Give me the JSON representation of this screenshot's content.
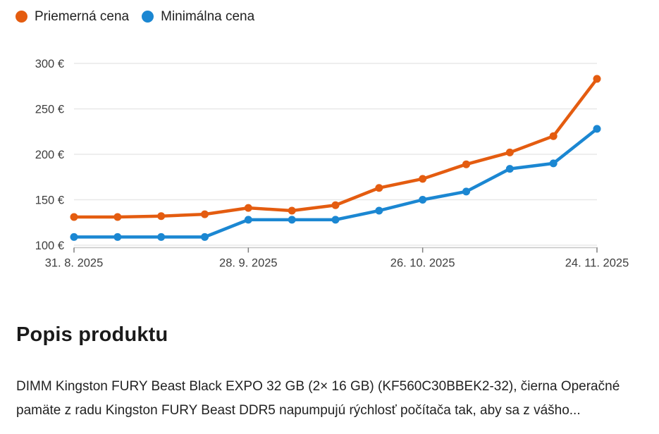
{
  "page": {
    "background": "#ffffff"
  },
  "legend": {
    "items": [
      {
        "label": "Priemerná cena",
        "icon": "orange-dot",
        "color": "#e45c10"
      },
      {
        "label": "Minimálna cena",
        "icon": "blue-dot",
        "color": "#1b87d2"
      }
    ]
  },
  "chart_data": {
    "type": "line",
    "num_points": 13,
    "series": [
      {
        "name": "Priemerná cena",
        "color": "#e45c10",
        "values": [
          131,
          131,
          132,
          134,
          141,
          138,
          144,
          163,
          173,
          189,
          202,
          220,
          283
        ]
      },
      {
        "name": "Minimálna cena",
        "color": "#1b87d2",
        "values": [
          109,
          109,
          109,
          109,
          128,
          128,
          128,
          138,
          150,
          159,
          184,
          190,
          228
        ]
      }
    ],
    "x_tick_labels": [
      {
        "index": 0,
        "label": "31. 8. 2025"
      },
      {
        "index": 4,
        "label": "28. 9. 2025"
      },
      {
        "index": 8,
        "label": "26. 10. 2025"
      },
      {
        "index": 12,
        "label": "24. 11. 2025"
      }
    ],
    "y_ticks": [
      {
        "value": 100,
        "label": "100 €"
      },
      {
        "value": 150,
        "label": "150 €"
      },
      {
        "value": 200,
        "label": "200 €"
      },
      {
        "value": 250,
        "label": "250 €"
      },
      {
        "value": 300,
        "label": "300 €"
      }
    ],
    "ylim": [
      100,
      300
    ],
    "currency": "€",
    "grid": true,
    "legend_position": "top-left",
    "colors": {
      "gridline": "#e8e8e8",
      "axis_line": "#c6c6c6",
      "tick_mark": "#7d7d7d",
      "tick_text": "#3f3f3f"
    }
  },
  "main": {
    "heading": "Popis produktu",
    "description": "DIMM Kingston FURY Beast Black EXPO 32 GB (2× 16 GB) (KF560C30BBEK2-32), čierna Operačné pamäte z radu Kingston FURY Beast DDR5 napumpujú rýchlosť počítača tak, aby sa z vášho..."
  }
}
